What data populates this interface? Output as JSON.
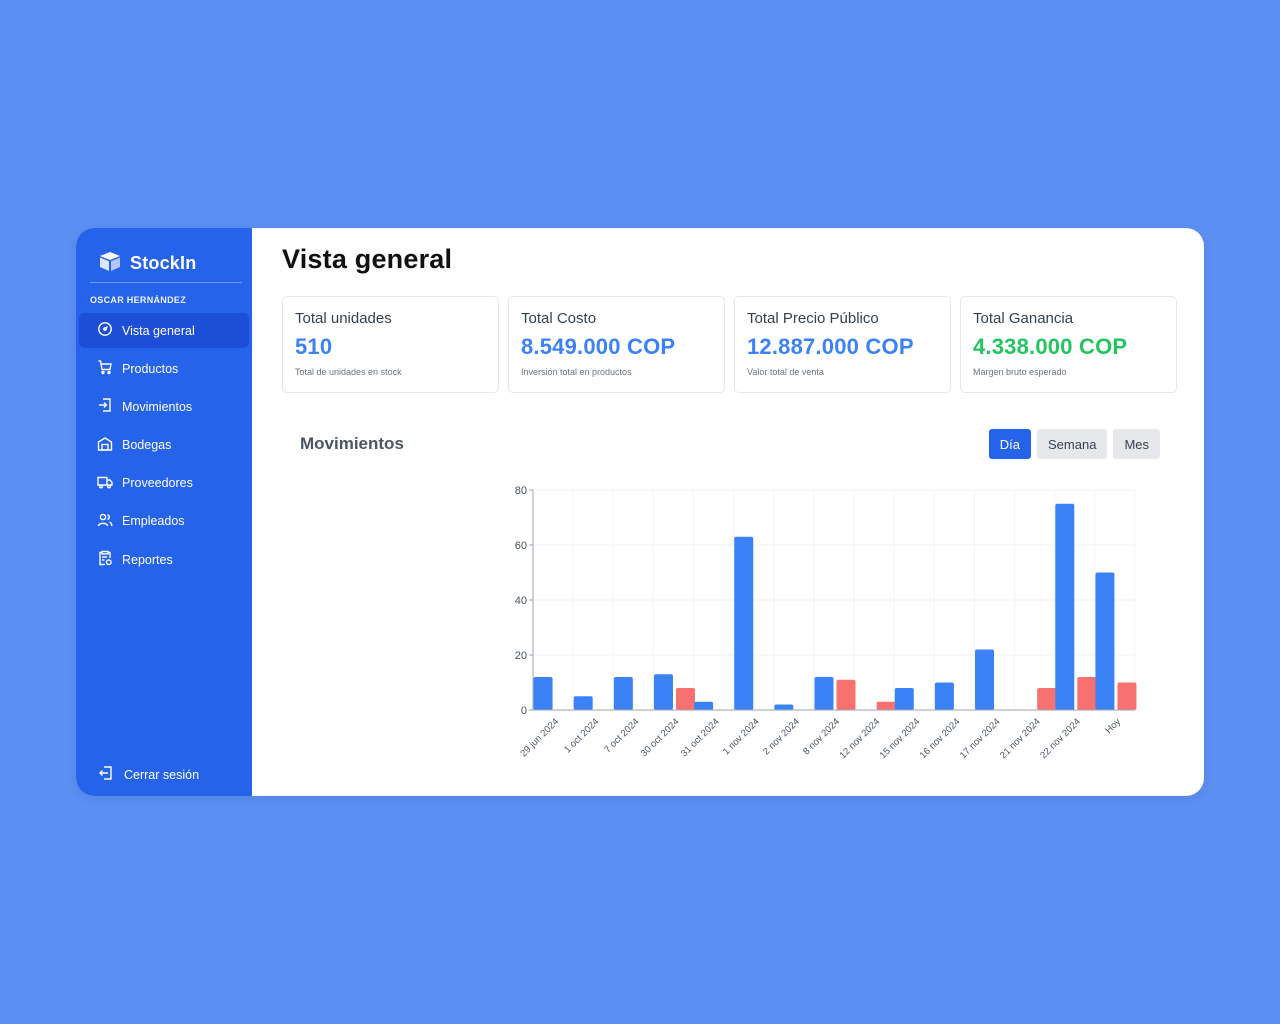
{
  "app": {
    "name": "StockIn"
  },
  "user": {
    "name": "OSCAR HERNÁNDEZ"
  },
  "sidebar": {
    "items": [
      {
        "label": "Vista general",
        "icon": "gauge-icon",
        "active": true
      },
      {
        "label": "Productos",
        "icon": "cart-icon",
        "active": false
      },
      {
        "label": "Movimientos",
        "icon": "login-box-icon",
        "active": false
      },
      {
        "label": "Bodegas",
        "icon": "warehouse-icon",
        "active": false
      },
      {
        "label": "Proveedores",
        "icon": "truck-icon",
        "active": false
      },
      {
        "label": "Empleados",
        "icon": "users-icon",
        "active": false
      },
      {
        "label": "Reportes",
        "icon": "clipboard-report-icon",
        "active": false
      }
    ],
    "logout_label": "Cerrar sesión"
  },
  "page": {
    "title": "Vista general"
  },
  "cards": [
    {
      "label": "Total unidades",
      "value": "510",
      "sub": "Total de unidades en stock",
      "color": "#3b82f6"
    },
    {
      "label": "Total Costo",
      "value": "8.549.000 COP",
      "sub": "Inversión total en productos",
      "color": "#3b82f6"
    },
    {
      "label": "Total Precio Público",
      "value": "12.887.000 COP",
      "sub": "Valor total de venta",
      "color": "#3b82f6"
    },
    {
      "label": "Total Ganancia",
      "value": "4.338.000 COP",
      "sub": "Margen bruto esperado",
      "color": "#22c55e"
    }
  ],
  "chart_section": {
    "title": "Movimientos",
    "ranges": [
      "Día",
      "Semana",
      "Mes"
    ],
    "active_range": "Día"
  },
  "chart_data": {
    "type": "bar",
    "categories": [
      "29 jun 2024",
      "1 oct 2024",
      "7 oct 2024",
      "30 oct 2024",
      "31 oct 2024",
      "1 nov 2024",
      "2 nov 2024",
      "8 nov 2024",
      "12 nov 2024",
      "15 nov 2024",
      "16 nov 2024",
      "17 nov 2024",
      "21 nov 2024",
      "22 nov 2024",
      "Hoy"
    ],
    "series": [
      {
        "values": [
          12,
          5,
          12,
          13,
          3,
          63,
          2,
          12,
          0,
          8,
          10,
          22,
          0,
          75,
          50
        ],
        "color": "#3b82f6"
      },
      {
        "values": [
          0,
          0,
          0,
          8,
          0,
          0,
          0,
          11,
          3,
          0,
          0,
          0,
          8,
          12,
          10
        ],
        "color": "#f87171"
      }
    ],
    "ylim": [
      0,
      80
    ],
    "yticks": [
      0,
      20,
      40,
      60,
      80
    ],
    "grid": true,
    "legend": "none"
  }
}
